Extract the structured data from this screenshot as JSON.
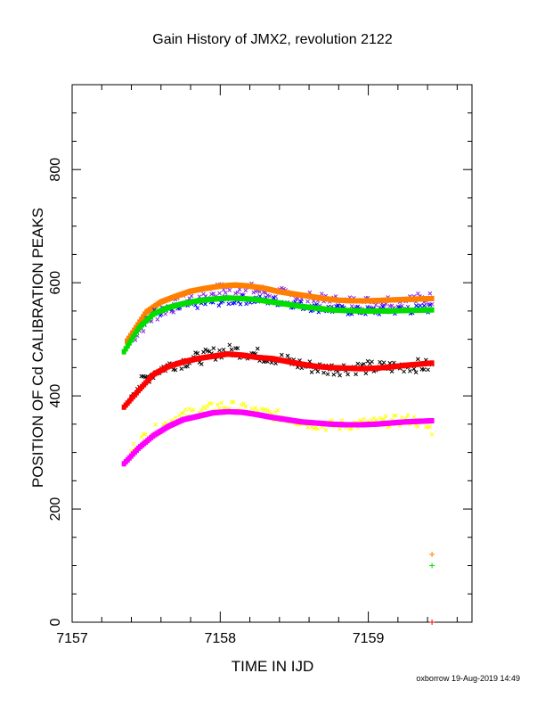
{
  "page": {
    "title": "Gain History of JMX2, revolution 2122",
    "footer": "oxborrow 19-Aug-2019 14:49"
  },
  "chart_data": {
    "type": "scatter",
    "title": "Gain History of JMX2, revolution 2122",
    "xlabel": "TIME IN IJD",
    "ylabel": "POSITION OF Cd CALIBRATION PEAKS",
    "xlim": [
      7157.0,
      7159.7
    ],
    "ylim": [
      0,
      950
    ],
    "xticks": [
      7157,
      7158,
      7159
    ],
    "yticks": [
      0,
      200,
      400,
      600,
      800
    ],
    "grid": false,
    "legend": "none",
    "series": [
      {
        "color": "#8a2be2",
        "marker": "x",
        "scatter": 12,
        "x": [
          7157.4,
          7157.5,
          7157.6,
          7157.7,
          7157.8,
          7157.9,
          7158.0,
          7158.1,
          7158.2,
          7158.3,
          7158.4,
          7158.5,
          7158.6,
          7158.7,
          7158.8,
          7158.9,
          7159.0,
          7159.1,
          7159.2,
          7159.3,
          7159.43
        ],
        "y": [
          500,
          530,
          550,
          560,
          572,
          580,
          588,
          590,
          588,
          584,
          580,
          576,
          572,
          568,
          566,
          565,
          565,
          567,
          568,
          570,
          572
        ]
      },
      {
        "color": "#ff7f00",
        "marker": "line",
        "scatter": 0,
        "x": [
          7157.37,
          7157.5,
          7157.6,
          7157.7,
          7157.8,
          7157.9,
          7158.0,
          7158.1,
          7158.2,
          7158.3,
          7158.4,
          7158.5,
          7158.6,
          7158.7,
          7158.8,
          7158.9,
          7159.0,
          7159.1,
          7159.2,
          7159.3,
          7159.43
        ],
        "y": [
          497,
          548,
          566,
          576,
          585,
          590,
          594,
          596,
          594,
          590,
          584,
          580,
          576,
          572,
          569,
          568,
          568,
          569,
          570,
          571,
          572
        ]
      },
      {
        "color": "#0000ff",
        "marker": "x",
        "scatter": 8,
        "x": [
          7157.45,
          7157.55,
          7157.65,
          7157.75,
          7157.85,
          7157.95,
          7158.05,
          7158.15,
          7158.25,
          7158.35,
          7158.45,
          7158.55,
          7158.65,
          7158.75,
          7158.85,
          7158.95,
          7159.05,
          7159.15,
          7159.25,
          7159.35,
          7159.43
        ],
        "y": [
          525,
          545,
          552,
          558,
          562,
          566,
          568,
          570,
          570,
          568,
          565,
          560,
          556,
          553,
          551,
          550,
          550,
          551,
          552,
          553,
          555
        ]
      },
      {
        "color": "#00dd00",
        "marker": "line",
        "scatter": 0,
        "x": [
          7157.35,
          7157.45,
          7157.55,
          7157.65,
          7157.75,
          7157.85,
          7157.95,
          7158.05,
          7158.15,
          7158.25,
          7158.35,
          7158.45,
          7158.55,
          7158.65,
          7158.75,
          7158.85,
          7158.95,
          7159.05,
          7159.15,
          7159.25,
          7159.43
        ],
        "y": [
          478,
          520,
          545,
          556,
          563,
          568,
          571,
          573,
          572,
          570,
          566,
          562,
          558,
          555,
          552,
          551,
          550,
          550,
          550,
          551,
          552
        ]
      },
      {
        "color": "#000000",
        "marker": "x",
        "scatter": 12,
        "x": [
          7157.4,
          7157.5,
          7157.6,
          7157.7,
          7157.8,
          7157.9,
          7158.0,
          7158.1,
          7158.2,
          7158.3,
          7158.4,
          7158.5,
          7158.6,
          7158.7,
          7158.8,
          7158.9,
          7159.0,
          7159.1,
          7159.2,
          7159.3,
          7159.43
        ],
        "y": [
          405,
          432,
          448,
          458,
          463,
          470,
          478,
          480,
          476,
          470,
          466,
          458,
          452,
          448,
          448,
          450,
          450,
          450,
          452,
          454,
          452
        ]
      },
      {
        "color": "#ff0000",
        "marker": "line",
        "scatter": 0,
        "x": [
          7157.35,
          7157.45,
          7157.55,
          7157.65,
          7157.75,
          7157.85,
          7157.95,
          7158.05,
          7158.15,
          7158.25,
          7158.35,
          7158.45,
          7158.55,
          7158.65,
          7158.75,
          7158.85,
          7158.95,
          7159.05,
          7159.15,
          7159.25,
          7159.43
        ],
        "y": [
          380,
          410,
          438,
          452,
          460,
          466,
          470,
          474,
          472,
          468,
          466,
          461,
          456,
          452,
          450,
          449,
          448,
          449,
          451,
          454,
          458
        ]
      },
      {
        "color": "#ffff00",
        "marker": "x",
        "scatter": 10,
        "x": [
          7157.4,
          7157.5,
          7157.6,
          7157.7,
          7157.8,
          7157.9,
          7158.0,
          7158.1,
          7158.2,
          7158.3,
          7158.4,
          7158.5,
          7158.6,
          7158.7,
          7158.8,
          7158.9,
          7159.0,
          7159.1,
          7159.2,
          7159.3,
          7159.43
        ],
        "y": [
          305,
          330,
          345,
          362,
          370,
          376,
          382,
          380,
          374,
          370,
          364,
          358,
          352,
          348,
          348,
          350,
          352,
          354,
          356,
          358,
          340
        ]
      },
      {
        "color": "#ff00ff",
        "marker": "line",
        "scatter": 0,
        "x": [
          7157.35,
          7157.45,
          7157.55,
          7157.65,
          7157.75,
          7157.85,
          7157.95,
          7158.05,
          7158.15,
          7158.25,
          7158.35,
          7158.45,
          7158.55,
          7158.65,
          7158.75,
          7158.85,
          7158.95,
          7159.05,
          7159.15,
          7159.25,
          7159.43
        ],
        "y": [
          280,
          308,
          330,
          346,
          358,
          364,
          370,
          372,
          371,
          367,
          362,
          358,
          354,
          352,
          350,
          349,
          349,
          350,
          352,
          354,
          356
        ]
      },
      {
        "color": "#ff7f00",
        "marker": "plus",
        "scatter": 0,
        "x": [
          7159.43
        ],
        "y": [
          120
        ]
      },
      {
        "color": "#00dd00",
        "marker": "plus",
        "scatter": 0,
        "x": [
          7159.43
        ],
        "y": [
          100
        ]
      },
      {
        "color": "#ff0000",
        "marker": "plus",
        "scatter": 0,
        "x": [
          7159.43
        ],
        "y": [
          0
        ]
      }
    ]
  }
}
